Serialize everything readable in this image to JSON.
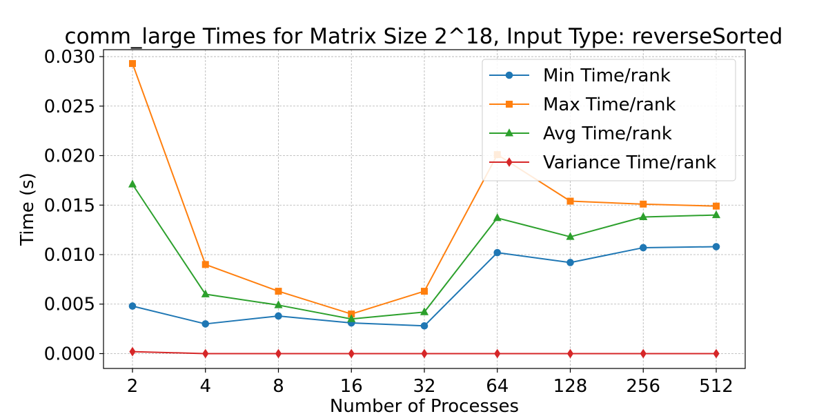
{
  "chart_data": {
    "type": "line",
    "title": "comm_large Times for Matrix Size 2^18, Input Type: reverseSorted",
    "xlabel": "Number of Processes",
    "ylabel": "Time (s)",
    "categories": [
      "2",
      "4",
      "8",
      "16",
      "32",
      "64",
      "128",
      "256",
      "512"
    ],
    "ylim": [
      -0.0015,
      0.0307
    ],
    "yticks": [
      "0.000",
      "0.005",
      "0.010",
      "0.015",
      "0.020",
      "0.025",
      "0.030"
    ],
    "grid": true,
    "legend_position": "top-right",
    "series": [
      {
        "name": "Min Time/rank",
        "color": "#1f77b4",
        "marker": "circle",
        "values": [
          0.0048,
          0.003,
          0.0038,
          0.0031,
          0.0028,
          0.0102,
          0.0092,
          0.0107,
          0.0108
        ]
      },
      {
        "name": "Max Time/rank",
        "color": "#ff7f0e",
        "marker": "square",
        "values": [
          0.0293,
          0.009,
          0.0063,
          0.004,
          0.0063,
          0.0201,
          0.0154,
          0.0151,
          0.0149
        ]
      },
      {
        "name": "Avg Time/rank",
        "color": "#2ca02c",
        "marker": "triangle",
        "values": [
          0.0171,
          0.006,
          0.0049,
          0.0035,
          0.0042,
          0.0137,
          0.0118,
          0.0138,
          0.014
        ]
      },
      {
        "name": "Variance Time/rank",
        "color": "#d62728",
        "marker": "diamond",
        "values": [
          0.0002,
          0.0,
          0.0,
          0.0,
          0.0,
          0.0,
          0.0,
          0.0,
          0.0
        ]
      }
    ]
  }
}
